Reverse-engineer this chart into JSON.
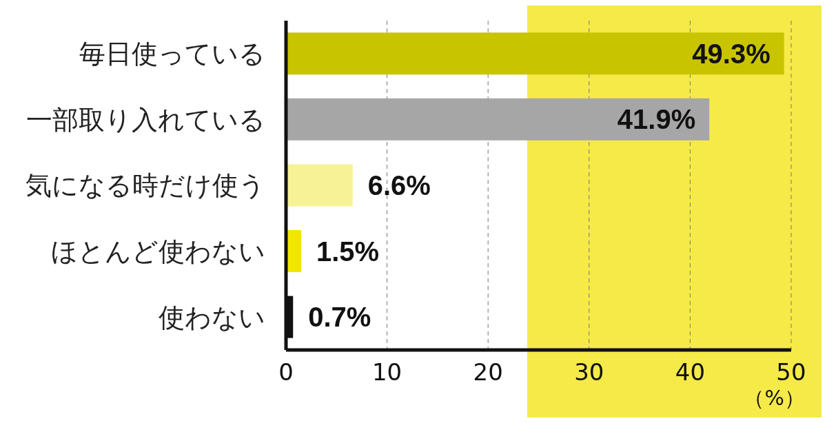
{
  "chart_data": {
    "type": "bar",
    "orientation": "horizontal",
    "xlabel": "（%）",
    "categories": [
      "毎日使っている",
      "一部取り入れている",
      "気になる時だけ使う",
      "ほとんど使わない",
      "使わない"
    ],
    "values": [
      49.3,
      41.9,
      6.6,
      1.5,
      0.7
    ],
    "colors": [
      "#c9c400",
      "#a6a6a6",
      "#f7f296",
      "#f0e600",
      "#111111"
    ],
    "value_labels": [
      "49.3%",
      "41.9%",
      "6.6%",
      "1.5%",
      "0.7%"
    ],
    "xlim": [
      0,
      50
    ],
    "xticks": [
      0,
      10,
      20,
      30,
      40,
      50
    ],
    "grid": "x"
  }
}
